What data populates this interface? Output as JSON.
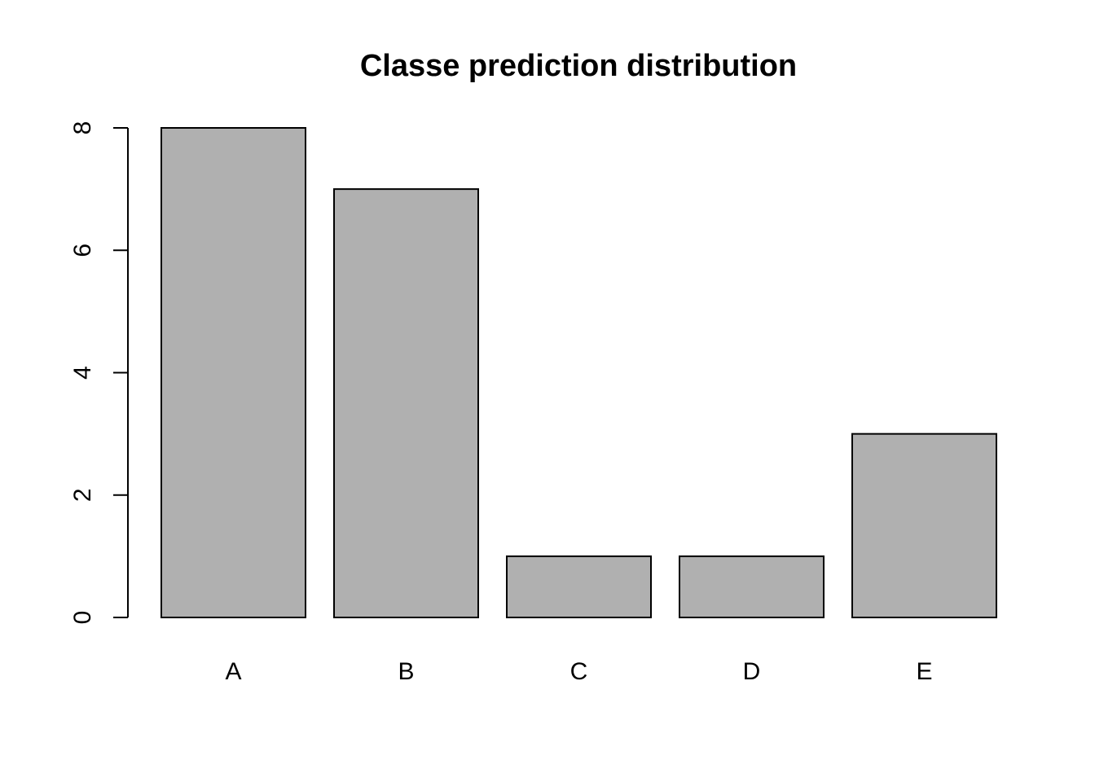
{
  "chart_data": {
    "type": "bar",
    "title": "Classe prediction distribution",
    "xlabel": "",
    "ylabel": "",
    "categories": [
      "A",
      "B",
      "C",
      "D",
      "E"
    ],
    "values": [
      8,
      7,
      1,
      1,
      3
    ],
    "ylim": [
      0,
      8
    ],
    "yticks": [
      "0",
      "2",
      "4",
      "6",
      "8"
    ],
    "grid": false,
    "legend": "none",
    "colors": {
      "bar_fill": "#b0b0b0",
      "bar_stroke": "#000000",
      "background": "#ffffff"
    }
  }
}
